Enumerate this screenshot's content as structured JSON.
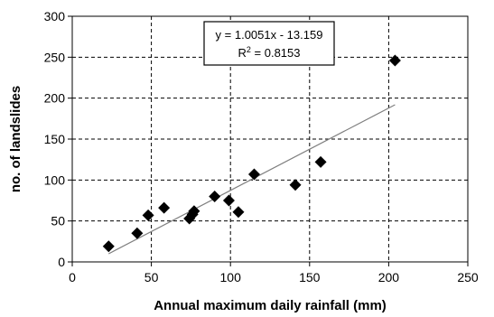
{
  "chart_data": {
    "type": "scatter",
    "title": "",
    "xlabel": "Annual maximum daily rainfall (mm)",
    "ylabel": "no. of landslides",
    "xlim": [
      0,
      250
    ],
    "ylim": [
      0,
      300
    ],
    "xticks": [
      0,
      50,
      100,
      150,
      200,
      250
    ],
    "yticks": [
      0,
      50,
      100,
      150,
      200,
      250,
      300
    ],
    "grid": true,
    "marker": "diamond",
    "colors": {
      "points": "#000000",
      "trendline": "#7f7f7f",
      "grid": "#000000"
    },
    "points": [
      {
        "x": 23,
        "y": 19
      },
      {
        "x": 41,
        "y": 35
      },
      {
        "x": 48,
        "y": 57
      },
      {
        "x": 58,
        "y": 66
      },
      {
        "x": 74,
        "y": 53
      },
      {
        "x": 76,
        "y": 58
      },
      {
        "x": 77,
        "y": 62
      },
      {
        "x": 90,
        "y": 80
      },
      {
        "x": 99,
        "y": 75
      },
      {
        "x": 105,
        "y": 61
      },
      {
        "x": 115,
        "y": 107
      },
      {
        "x": 141,
        "y": 94
      },
      {
        "x": 157,
        "y": 122
      },
      {
        "x": 204,
        "y": 246
      }
    ],
    "trendline": {
      "slope": 1.0051,
      "intercept": -13.159,
      "x_range": [
        23,
        204
      ],
      "equation_label": "y = 1.0051x - 13.159",
      "r2_prefix": "R",
      "r2_exp": "2",
      "r2_value": " = 0.8153"
    }
  }
}
